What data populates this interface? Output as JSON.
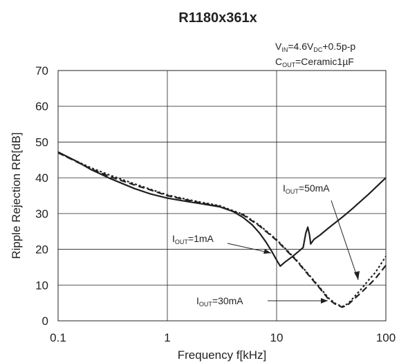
{
  "chart_data": {
    "type": "line",
    "title": "R1180x361x",
    "conditions": {
      "vin": {
        "main": "V",
        "sub": "IN",
        "after": "=4.6V",
        "sub2": "DC",
        "after2": "+0.5p-p"
      },
      "cout": {
        "main": "C",
        "sub": "OUT",
        "after": "=Ceramic1",
        "mu": "µ",
        "after2": "F"
      }
    },
    "xlabel": "Frequency f[kHz]",
    "ylabel": "Ripple Rejection RR[dB]",
    "x_scale": "log",
    "xlim": [
      0.1,
      100
    ],
    "ylim": [
      0,
      70
    ],
    "x_ticks": [
      "0.1",
      "1",
      "10",
      "100"
    ],
    "y_ticks": [
      "0",
      "10",
      "20",
      "30",
      "40",
      "50",
      "60",
      "70"
    ],
    "grid": true,
    "series": [
      {
        "name": "IOUT=1mA",
        "label": {
          "main": "I",
          "sub": "OUT",
          "after": "=1mA"
        },
        "style": "solid",
        "color": "#231f20",
        "points": [
          [
            0.1,
            47.2
          ],
          [
            0.15,
            44.5
          ],
          [
            0.2,
            42.3
          ],
          [
            0.3,
            39.8
          ],
          [
            0.5,
            37.0
          ],
          [
            0.7,
            35.5
          ],
          [
            1.0,
            34.3
          ],
          [
            1.5,
            33.4
          ],
          [
            2.0,
            32.8
          ],
          [
            3.0,
            31.9
          ],
          [
            4.0,
            30.6
          ],
          [
            5.0,
            28.8
          ],
          [
            6.0,
            26.8
          ],
          [
            7.0,
            24.5
          ],
          [
            8.0,
            22.0
          ],
          [
            9.0,
            19.5
          ],
          [
            10.0,
            17.0
          ],
          [
            10.8,
            15.3
          ],
          [
            12.0,
            16.5
          ],
          [
            14.0,
            18.0
          ],
          [
            16.0,
            19.5
          ],
          [
            17.5,
            20.5
          ],
          [
            18.5,
            24.5
          ],
          [
            19.3,
            26.2
          ],
          [
            20.0,
            24.0
          ],
          [
            20.5,
            21.5
          ],
          [
            22.0,
            22.8
          ],
          [
            25.0,
            24.0
          ],
          [
            30.0,
            26.0
          ],
          [
            40.0,
            29.0
          ],
          [
            50.0,
            31.5
          ],
          [
            70.0,
            35.5
          ],
          [
            100.0,
            40.0
          ]
        ]
      },
      {
        "name": "IOUT=30mA",
        "label": {
          "main": "I",
          "sub": "OUT",
          "after": "=30mA"
        },
        "style": "dashed",
        "color": "#231f20",
        "points": [
          [
            0.1,
            47.0
          ],
          [
            0.2,
            42.5
          ],
          [
            0.3,
            40.3
          ],
          [
            0.5,
            38.0
          ],
          [
            0.7,
            36.6
          ],
          [
            1.0,
            35.0
          ],
          [
            1.5,
            33.8
          ],
          [
            2.0,
            33.0
          ],
          [
            3.0,
            32.0
          ],
          [
            5.0,
            29.5
          ],
          [
            7.0,
            26.5
          ],
          [
            10.0,
            22.5
          ],
          [
            15.0,
            17.0
          ],
          [
            20.0,
            12.5
          ],
          [
            25.0,
            9.0
          ],
          [
            30.0,
            6.0
          ],
          [
            35.0,
            4.5
          ],
          [
            40.0,
            3.8
          ],
          [
            45.0,
            4.5
          ],
          [
            50.0,
            5.8
          ],
          [
            60.0,
            8.0
          ],
          [
            70.0,
            10.0
          ],
          [
            80.0,
            11.8
          ],
          [
            100.0,
            15.5
          ]
        ]
      },
      {
        "name": "IOUT=50mA",
        "label": {
          "main": "I",
          "sub": "OUT",
          "after": "=50mA"
        },
        "style": "dotted",
        "color": "#231f20",
        "points": [
          [
            0.1,
            47.0
          ],
          [
            0.2,
            42.8
          ],
          [
            0.3,
            40.7
          ],
          [
            0.5,
            38.3
          ],
          [
            0.7,
            36.8
          ],
          [
            1.0,
            35.2
          ],
          [
            1.5,
            34.0
          ],
          [
            2.0,
            33.2
          ],
          [
            3.0,
            32.2
          ],
          [
            5.0,
            29.7
          ],
          [
            7.0,
            26.7
          ],
          [
            10.0,
            22.7
          ],
          [
            15.0,
            17.2
          ],
          [
            20.0,
            12.7
          ],
          [
            25.0,
            9.2
          ],
          [
            30.0,
            6.3
          ],
          [
            35.0,
            4.7
          ],
          [
            40.0,
            4.0
          ],
          [
            45.0,
            4.8
          ],
          [
            50.0,
            6.3
          ],
          [
            60.0,
            9.0
          ],
          [
            70.0,
            11.5
          ],
          [
            80.0,
            13.5
          ],
          [
            100.0,
            18.0
          ]
        ]
      }
    ]
  }
}
